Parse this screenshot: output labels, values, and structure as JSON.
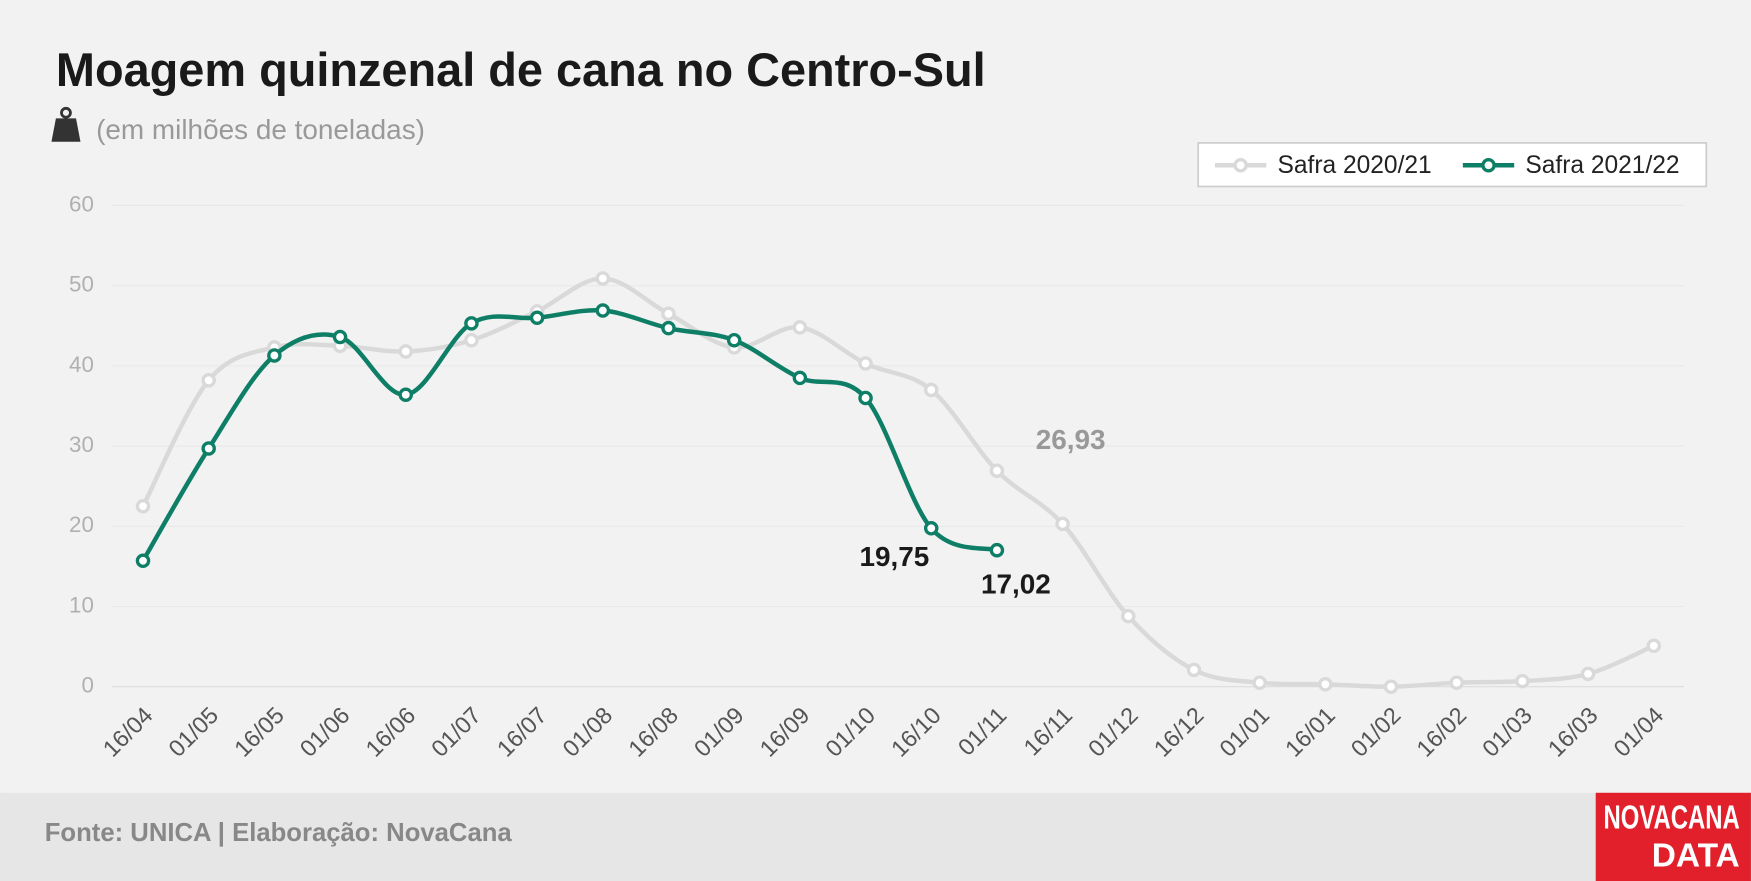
{
  "chart_data": {
    "type": "line",
    "title": "Moagem quinzenal de cana no Centro-Sul",
    "subtitle": "(em milhões de toneladas)",
    "categories": [
      "16/04",
      "01/05",
      "16/05",
      "01/06",
      "16/06",
      "01/07",
      "16/07",
      "01/08",
      "16/08",
      "01/09",
      "16/09",
      "01/10",
      "16/10",
      "01/11",
      "16/11",
      "01/12",
      "16/12",
      "01/01",
      "16/01",
      "01/02",
      "16/02",
      "01/03",
      "16/03",
      "01/04"
    ],
    "series": [
      {
        "name": "Safra 2020/21",
        "color": "#d9d9d9",
        "values": [
          22.5,
          38.2,
          42.3,
          42.5,
          41.8,
          43.2,
          46.8,
          50.9,
          46.5,
          42.3,
          44.8,
          40.3,
          37.0,
          26.93,
          20.3,
          8.8,
          2.1,
          0.5,
          0.3,
          0.0,
          0.5,
          0.7,
          1.6,
          5.1
        ],
        "value_labels": [
          null,
          null,
          null,
          null,
          null,
          null,
          null,
          null,
          null,
          null,
          null,
          null,
          null,
          "26,93",
          null,
          null,
          null,
          null,
          null,
          null,
          null,
          null,
          null,
          null
        ]
      },
      {
        "name": "Safra 2021/22",
        "color": "#0e7f66",
        "values": [
          15.7,
          29.7,
          41.3,
          43.6,
          36.4,
          45.3,
          46.0,
          46.9,
          44.7,
          43.2,
          38.5,
          36.0,
          19.75,
          17.02,
          null,
          null,
          null,
          null,
          null,
          null,
          null,
          null,
          null,
          null
        ],
        "value_labels": [
          null,
          null,
          null,
          null,
          null,
          null,
          null,
          null,
          null,
          null,
          null,
          null,
          "19,75",
          "17,02",
          null,
          null,
          null,
          null,
          null,
          null,
          null,
          null,
          null,
          null
        ]
      }
    ],
    "ylim": [
      0,
      60
    ],
    "yticks": [
      0,
      10,
      20,
      30,
      40,
      50,
      60
    ],
    "grid": true,
    "legend": "top-right"
  },
  "footer": "Fonte: UNICA | Elaboração: NovaCana",
  "logo": {
    "line1": "NOVACANA",
    "line2": "DATA"
  }
}
